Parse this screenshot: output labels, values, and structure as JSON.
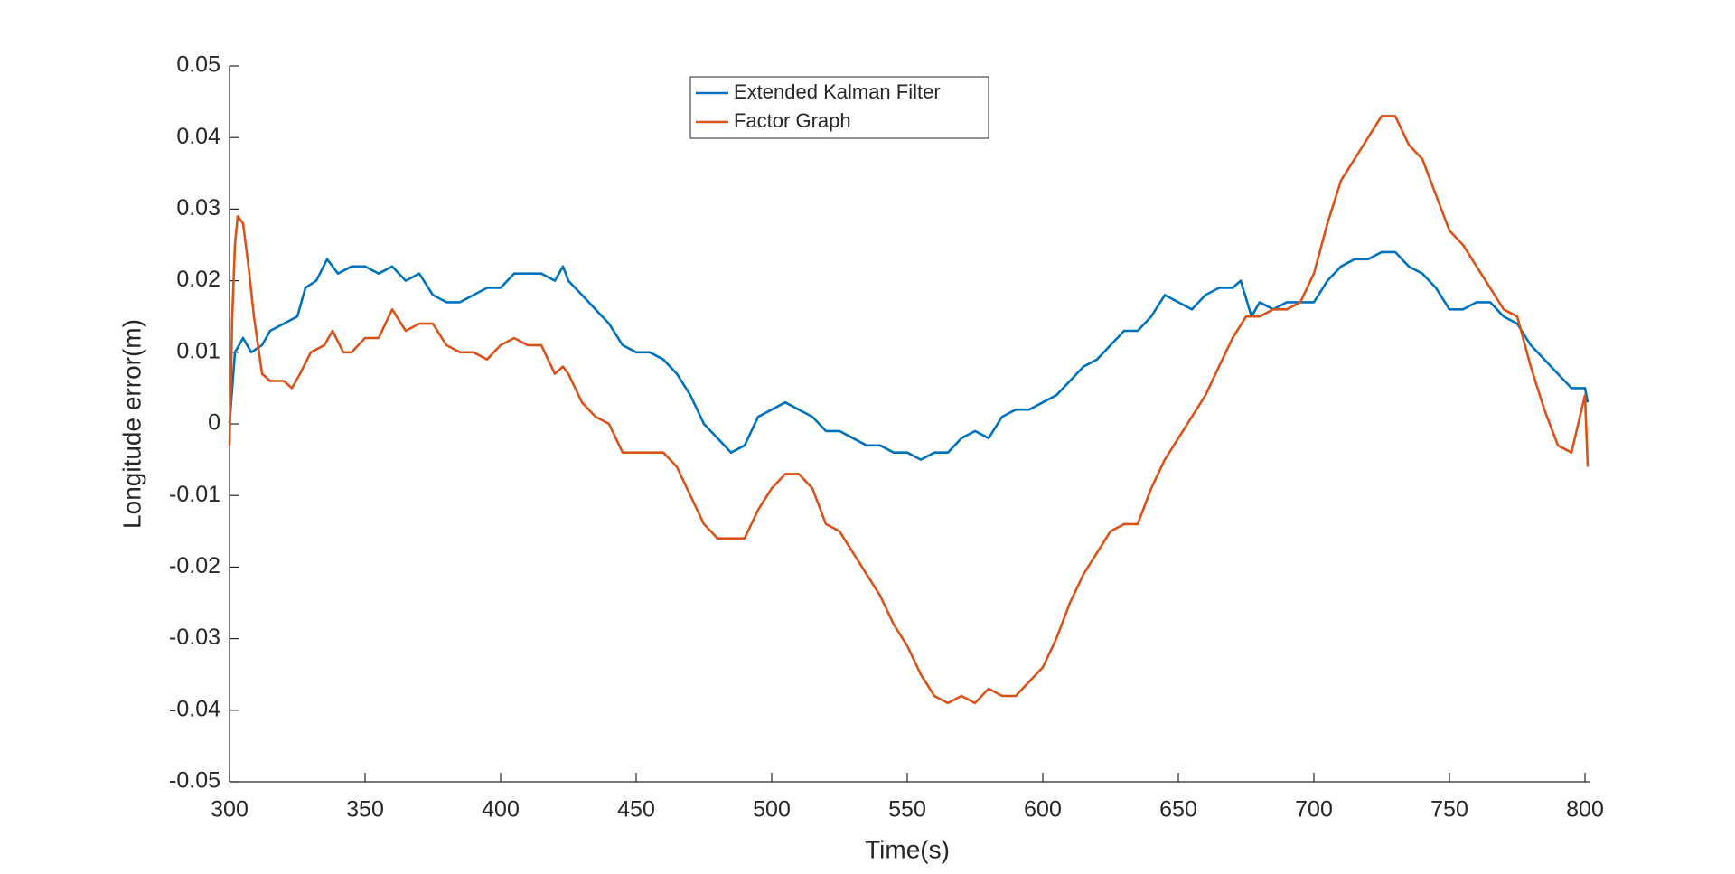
{
  "chart_data": {
    "type": "line",
    "x_label": "Time(s)",
    "y_label": "Longitude error(m)",
    "xlim": [
      300,
      802
    ],
    "ylim": [
      -0.05,
      0.05
    ],
    "xticks": [
      300,
      350,
      400,
      450,
      500,
      550,
      600,
      650,
      700,
      750,
      800
    ],
    "yticks": [
      -0.05,
      -0.04,
      -0.03,
      -0.02,
      -0.01,
      0,
      0.01,
      0.02,
      0.03,
      0.04,
      0.05
    ],
    "grid": false,
    "legend": "north",
    "series": [
      {
        "name": "Extended Kalman Filter",
        "color": "#0072BD",
        "x": [
          300,
          302,
          305,
          308,
          312,
          315,
          320,
          325,
          328,
          332,
          336,
          340,
          345,
          350,
          355,
          360,
          365,
          370,
          375,
          380,
          385,
          390,
          395,
          400,
          405,
          410,
          415,
          420,
          423,
          425,
          430,
          435,
          440,
          445,
          450,
          455,
          460,
          465,
          470,
          475,
          480,
          485,
          490,
          495,
          500,
          505,
          510,
          515,
          520,
          525,
          530,
          535,
          540,
          545,
          550,
          555,
          560,
          565,
          570,
          575,
          580,
          585,
          590,
          595,
          600,
          605,
          610,
          615,
          620,
          625,
          630,
          635,
          640,
          645,
          650,
          655,
          660,
          665,
          670,
          673,
          677,
          680,
          685,
          690,
          695,
          700,
          705,
          710,
          715,
          720,
          725,
          730,
          735,
          740,
          745,
          750,
          755,
          760,
          765,
          770,
          775,
          780,
          785,
          790,
          795,
          800,
          801
        ],
        "values": [
          0,
          0.01,
          0.012,
          0.01,
          0.011,
          0.013,
          0.014,
          0.015,
          0.019,
          0.02,
          0.023,
          0.021,
          0.022,
          0.022,
          0.021,
          0.022,
          0.02,
          0.021,
          0.018,
          0.017,
          0.017,
          0.018,
          0.019,
          0.019,
          0.021,
          0.021,
          0.021,
          0.02,
          0.022,
          0.02,
          0.018,
          0.016,
          0.014,
          0.011,
          0.01,
          0.01,
          0.009,
          0.007,
          0.004,
          0,
          -0.002,
          -0.004,
          -0.003,
          0.001,
          0.002,
          0.003,
          0.002,
          0.001,
          -0.001,
          -0.001,
          -0.002,
          -0.003,
          -0.003,
          -0.004,
          -0.004,
          -0.005,
          -0.004,
          -0.004,
          -0.002,
          -0.001,
          -0.002,
          0.001,
          0.002,
          0.002,
          0.003,
          0.004,
          0.006,
          0.008,
          0.009,
          0.011,
          0.013,
          0.013,
          0.015,
          0.018,
          0.017,
          0.016,
          0.018,
          0.019,
          0.019,
          0.02,
          0.015,
          0.017,
          0.016,
          0.017,
          0.017,
          0.017,
          0.02,
          0.022,
          0.023,
          0.023,
          0.024,
          0.024,
          0.022,
          0.021,
          0.019,
          0.016,
          0.016,
          0.017,
          0.017,
          0.015,
          0.014,
          0.011,
          0.009,
          0.007,
          0.005,
          0.005,
          0.003
        ]
      },
      {
        "name": "Factor Graph",
        "color": "#D95319",
        "x": [
          300,
          301,
          302,
          303,
          305,
          307,
          309,
          312,
          315,
          320,
          323,
          326,
          330,
          335,
          338,
          342,
          345,
          350,
          355,
          360,
          365,
          370,
          375,
          380,
          385,
          390,
          395,
          400,
          405,
          410,
          415,
          420,
          423,
          425,
          430,
          435,
          440,
          445,
          450,
          455,
          460,
          465,
          470,
          475,
          480,
          485,
          490,
          495,
          500,
          505,
          510,
          515,
          520,
          525,
          530,
          535,
          540,
          545,
          550,
          555,
          560,
          565,
          570,
          575,
          580,
          585,
          590,
          595,
          600,
          605,
          610,
          615,
          620,
          625,
          630,
          635,
          640,
          645,
          650,
          655,
          660,
          665,
          670,
          675,
          680,
          685,
          690,
          695,
          700,
          705,
          710,
          715,
          720,
          725,
          730,
          735,
          740,
          745,
          750,
          755,
          760,
          765,
          770,
          775,
          780,
          785,
          790,
          795,
          800,
          801
        ],
        "values": [
          -0.003,
          0.015,
          0.025,
          0.029,
          0.028,
          0.022,
          0.015,
          0.007,
          0.006,
          0.006,
          0.005,
          0.007,
          0.01,
          0.011,
          0.013,
          0.01,
          0.01,
          0.012,
          0.012,
          0.016,
          0.013,
          0.014,
          0.014,
          0.011,
          0.01,
          0.01,
          0.009,
          0.011,
          0.012,
          0.011,
          0.011,
          0.007,
          0.008,
          0.007,
          0.003,
          0.001,
          0,
          -0.004,
          -0.004,
          -0.004,
          -0.004,
          -0.006,
          -0.01,
          -0.014,
          -0.016,
          -0.016,
          -0.016,
          -0.012,
          -0.009,
          -0.007,
          -0.007,
          -0.009,
          -0.014,
          -0.015,
          -0.018,
          -0.021,
          -0.024,
          -0.028,
          -0.031,
          -0.035,
          -0.038,
          -0.039,
          -0.038,
          -0.039,
          -0.037,
          -0.038,
          -0.038,
          -0.036,
          -0.034,
          -0.03,
          -0.025,
          -0.021,
          -0.018,
          -0.015,
          -0.014,
          -0.014,
          -0.009,
          -0.005,
          -0.002,
          0.001,
          0.004,
          0.008,
          0.012,
          0.015,
          0.015,
          0.016,
          0.016,
          0.017,
          0.021,
          0.028,
          0.034,
          0.037,
          0.04,
          0.043,
          0.043,
          0.039,
          0.037,
          0.032,
          0.027,
          0.025,
          0.022,
          0.019,
          0.016,
          0.015,
          0.008,
          0.002,
          -0.003,
          -0.004,
          0.004,
          -0.006
        ]
      }
    ]
  }
}
